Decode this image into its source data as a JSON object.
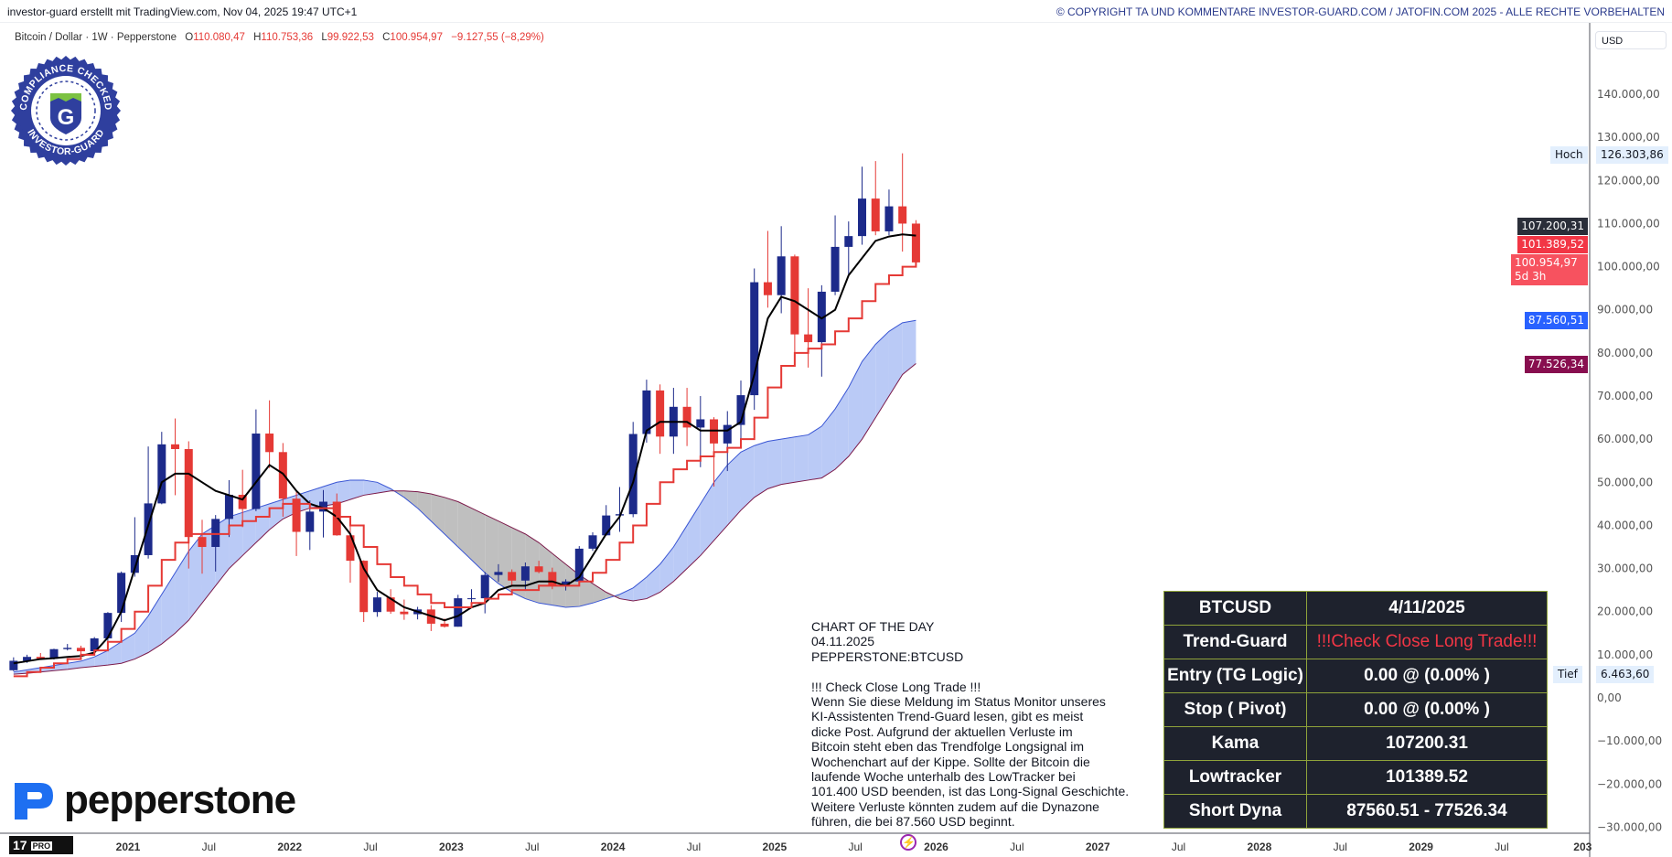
{
  "header": {
    "credit": "investor-guard erstellt mit TradingView.com, Nov 04, 2025 19:47 UTC+1",
    "copyright": "© COPYRIGHT TA UND KOMMENTARE INVESTOR-GUARD.COM / JATOFIN.COM 2025 - ALLE RECHTE VORBEHALTEN"
  },
  "legend": {
    "symbol": "Bitcoin / Dollar · 1W · Pepperstone",
    "o_label": "O",
    "o": "110.080,47",
    "h_label": "H",
    "h": "110.753,36",
    "l_label": "L",
    "l": "99.922,53",
    "c_label": "C",
    "c": "100.954,97",
    "change": "−9.127,55 (−8,29%)"
  },
  "badge": {
    "top_text": "COMPLIANCE CHECKED",
    "bottom_text": "INVESTOR-GUARD",
    "letter": "G"
  },
  "broker_logo": {
    "text": "pepperstone",
    "color": "#1e6ff1"
  },
  "tv_logo": {
    "mark": "17",
    "pro": "PRO"
  },
  "price_axis": {
    "currency": "USD",
    "high_label": "Hoch",
    "high_value": "126.303,86",
    "low_label": "Tief",
    "low_value": "6.463,60",
    "tags": [
      {
        "value": "107.200,31",
        "color": "#2a2e39"
      },
      {
        "value": "101.389,52",
        "color": "#f23645"
      },
      {
        "value": "100.954,97",
        "sub": "5d 3h",
        "color": "#f7525f"
      },
      {
        "value": "87.560,51",
        "color": "#2962ff"
      },
      {
        "value": "77.526,34",
        "color": "#880e4f"
      }
    ]
  },
  "note": {
    "text": "CHART OF THE DAY\n04.11.2025\nPEPPERSTONE:BTCUSD\n\n!!! Check Close Long Trade !!!\nWenn Sie diese Meldung im Status Monitor unseres\nKI-Assistenten Trend-Guard lesen, gibt es meist\ndicke Post. Aufgrund der aktuellen Verluste im\nBitcoin steht eben das Trendfolge Longsignal im\nWochenchart auf der Kippe. Sollte der Bitcoin die\nlaufende Woche unterhalb des LowTracker bei\n101.400 USD beenden, ist das Long-Signal Geschichte.\nWeitere Verluste könnten zudem auf die Dynazone\nführen, die bei 87.560 USD beginnt."
  },
  "table": {
    "rows": [
      [
        "BTCUSD",
        "4/11/2025"
      ],
      [
        "Trend-Guard",
        "!!!Check Close Long Trade!!!"
      ],
      [
        "Entry (TG Logic)",
        "0.00 @ (0.00% )"
      ],
      [
        "Stop ( Pivot)",
        "0.00 @ (0.00% )"
      ],
      [
        "Kama",
        "107200.31"
      ],
      [
        "Lowtracker",
        "101389.52"
      ],
      [
        "Short Dyna",
        "87560.51 - 77526.34"
      ]
    ],
    "alert_color": "#f23645"
  },
  "chart_data": {
    "type": "candlestick",
    "ylim": [
      -30000,
      140000
    ],
    "y_ticks": [
      "140.000,00",
      "130.000,00",
      "120.000,00",
      "110.000,00",
      "100.000,00",
      "90.000,00",
      "80.000,00",
      "70.000,00",
      "60.000,00",
      "50.000,00",
      "40.000,00",
      "30.000,00",
      "20.000,00",
      "10.000,00",
      "0,00",
      "−10.000,00",
      "−20.000,00",
      "−30.000,00"
    ],
    "y_tick_values": [
      140000,
      130000,
      120000,
      110000,
      100000,
      90000,
      80000,
      70000,
      60000,
      50000,
      40000,
      30000,
      20000,
      10000,
      0,
      -10000,
      -20000,
      -30000
    ],
    "x_ticks": [
      {
        "label": "2021",
        "t": 2021,
        "bold": true
      },
      {
        "label": "Jul",
        "t": 2021.5
      },
      {
        "label": "2022",
        "t": 2022,
        "bold": true
      },
      {
        "label": "Jul",
        "t": 2022.5
      },
      {
        "label": "2023",
        "t": 2023,
        "bold": true
      },
      {
        "label": "Jul",
        "t": 2023.5
      },
      {
        "label": "2024",
        "t": 2024,
        "bold": true
      },
      {
        "label": "Jul",
        "t": 2024.5
      },
      {
        "label": "2025",
        "t": 2025,
        "bold": true
      },
      {
        "label": "Jul",
        "t": 2025.5
      },
      {
        "label": "2026",
        "t": 2026,
        "bold": true
      },
      {
        "label": "Jul",
        "t": 2026.5
      },
      {
        "label": "2027",
        "t": 2027,
        "bold": true
      },
      {
        "label": "Jul",
        "t": 2027.5
      },
      {
        "label": "2028",
        "t": 2028,
        "bold": true
      },
      {
        "label": "Jul",
        "t": 2028.5
      },
      {
        "label": "2029",
        "t": 2029,
        "bold": true
      },
      {
        "label": "Jul",
        "t": 2029.5
      },
      {
        "label": "203",
        "t": 2030,
        "bold": true
      }
    ],
    "grid": false,
    "colors": {
      "up": "#1c2a8a",
      "down": "#e53935",
      "kama": "#000000",
      "lowtracker": "#e53935",
      "dyna_bull": "#b3c4f5",
      "dyna_bear": "#b8b8b8",
      "dyna_a": "#3a56d4",
      "dyna_b": "#7b1a4a"
    },
    "start_month": "2020-04",
    "ohlc_thousands": [
      [
        6.4,
        9.4,
        6.2,
        8.6
      ],
      [
        8.6,
        10.0,
        8.1,
        9.5
      ],
      [
        9.5,
        10.4,
        8.9,
        9.1
      ],
      [
        9.1,
        11.4,
        8.9,
        11.3
      ],
      [
        11.3,
        12.5,
        11.0,
        11.6
      ],
      [
        11.6,
        12.1,
        10.0,
        10.8
      ],
      [
        10.8,
        14.1,
        10.4,
        13.8
      ],
      [
        13.8,
        19.9,
        13.2,
        19.7
      ],
      [
        19.7,
        29.3,
        17.6,
        29.0
      ],
      [
        29.0,
        41.9,
        28.1,
        33.1
      ],
      [
        33.1,
        58.3,
        32.3,
        45.1
      ],
      [
        45.1,
        61.7,
        44.9,
        58.8
      ],
      [
        58.8,
        64.8,
        47.0,
        57.7
      ],
      [
        57.7,
        59.5,
        30.0,
        37.3
      ],
      [
        37.3,
        41.3,
        28.8,
        35.0
      ],
      [
        35.0,
        42.4,
        29.3,
        41.5
      ],
      [
        41.5,
        50.5,
        37.3,
        47.1
      ],
      [
        47.1,
        52.9,
        39.6,
        43.8
      ],
      [
        43.8,
        66.9,
        43.3,
        61.3
      ],
      [
        61.3,
        69.0,
        53.3,
        57.0
      ],
      [
        57.0,
        59.1,
        42.0,
        46.2
      ],
      [
        46.2,
        47.9,
        32.9,
        38.5
      ],
      [
        38.5,
        45.8,
        34.3,
        43.2
      ],
      [
        43.2,
        48.2,
        37.2,
        45.5
      ],
      [
        45.5,
        47.4,
        37.6,
        37.7
      ],
      [
        37.7,
        40.0,
        26.7,
        31.8
      ],
      [
        31.8,
        31.9,
        17.6,
        19.9
      ],
      [
        19.9,
        24.6,
        18.8,
        23.3
      ],
      [
        23.3,
        25.2,
        19.5,
        20.0
      ],
      [
        20.0,
        22.8,
        18.1,
        19.4
      ],
      [
        19.4,
        21.1,
        18.2,
        20.5
      ],
      [
        20.5,
        21.5,
        15.5,
        17.2
      ],
      [
        17.2,
        18.4,
        16.3,
        16.5
      ],
      [
        16.5,
        23.9,
        16.5,
        23.1
      ],
      [
        23.1,
        25.2,
        21.4,
        23.1
      ],
      [
        23.1,
        29.2,
        19.6,
        28.5
      ],
      [
        28.5,
        31.0,
        26.9,
        29.2
      ],
      [
        29.2,
        29.8,
        25.8,
        27.2
      ],
      [
        27.2,
        31.4,
        24.8,
        30.5
      ],
      [
        30.5,
        31.8,
        28.9,
        29.2
      ],
      [
        29.2,
        30.2,
        25.2,
        26.0
      ],
      [
        26.0,
        27.5,
        24.9,
        27.0
      ],
      [
        27.0,
        35.2,
        26.6,
        34.6
      ],
      [
        34.6,
        38.4,
        34.1,
        37.7
      ],
      [
        37.7,
        44.7,
        37.6,
        42.3
      ],
      [
        42.3,
        48.9,
        38.5,
        42.6
      ],
      [
        42.6,
        64.0,
        41.9,
        61.2
      ],
      [
        61.2,
        73.8,
        59.2,
        71.3
      ],
      [
        71.3,
        72.7,
        56.6,
        60.6
      ],
      [
        60.6,
        71.9,
        56.6,
        67.5
      ],
      [
        67.5,
        71.9,
        58.4,
        62.7
      ],
      [
        62.7,
        70.0,
        53.5,
        64.6
      ],
      [
        64.6,
        65.1,
        49.0,
        59.0
      ],
      [
        59.0,
        66.5,
        52.6,
        63.3
      ],
      [
        63.3,
        73.6,
        58.9,
        70.2
      ],
      [
        70.2,
        99.6,
        66.8,
        96.4
      ],
      [
        96.4,
        108.3,
        90.5,
        93.4
      ],
      [
        93.4,
        109.4,
        89.2,
        102.4
      ],
      [
        102.4,
        102.8,
        78.2,
        84.3
      ],
      [
        84.3,
        95.0,
        76.6,
        82.5
      ],
      [
        82.5,
        95.7,
        74.5,
        94.2
      ],
      [
        94.2,
        111.9,
        93.4,
        104.6
      ],
      [
        104.6,
        110.5,
        98.2,
        107.1
      ],
      [
        107.1,
        123.2,
        105.1,
        115.8
      ],
      [
        115.8,
        124.5,
        107.3,
        108.2
      ],
      [
        108.2,
        117.9,
        107.3,
        114.0
      ],
      [
        114.0,
        126.3,
        103.5,
        110.0
      ],
      [
        110.0,
        110.8,
        99.9,
        101.0
      ]
    ],
    "kama_thousands": [
      8,
      8.5,
      9,
      9.2,
      9.5,
      9.7,
      10.5,
      14,
      20,
      30,
      40,
      50,
      52,
      52,
      50,
      48,
      47,
      46,
      50,
      54,
      52,
      48,
      45,
      44,
      42,
      38,
      30,
      25,
      23,
      21,
      20,
      19,
      18,
      19,
      21,
      22,
      25,
      26,
      26,
      27,
      27,
      26,
      28,
      33,
      38,
      42,
      50,
      62,
      64,
      64,
      64,
      62,
      62,
      62,
      64,
      75,
      88,
      93,
      92,
      90,
      88,
      90,
      98,
      102,
      106,
      107,
      107.5,
      107.2
    ],
    "lowtracker_thousands": [
      5,
      6,
      7,
      8,
      9,
      10,
      11,
      13,
      16,
      20,
      26,
      32,
      36,
      38,
      38,
      38,
      40,
      41,
      42,
      44,
      45,
      45,
      44,
      44,
      42,
      40,
      35,
      31,
      28,
      26,
      24,
      22,
      21,
      21,
      22,
      23,
      24,
      25,
      25,
      26,
      26,
      26,
      27,
      29,
      32,
      36,
      40,
      45,
      50,
      53,
      55,
      56,
      57,
      58,
      60,
      65,
      72,
      77,
      80,
      81,
      82,
      85,
      88,
      92,
      96,
      98,
      100,
      101.39
    ],
    "dyna_a_thousands": [
      6,
      6.5,
      7,
      7.5,
      8,
      8.5,
      9.5,
      11,
      13,
      15,
      19,
      24,
      29,
      34,
      38,
      40,
      42,
      43,
      44,
      45,
      46,
      47,
      48,
      49,
      50,
      50.5,
      50.5,
      50,
      48.5,
      46.5,
      44,
      41,
      38,
      35,
      32,
      29,
      26.5,
      24.5,
      23,
      22,
      21.5,
      21,
      21.2,
      22,
      23,
      24,
      25.5,
      28,
      31,
      35,
      40,
      45,
      50,
      54,
      57,
      58.5,
      59.5,
      60,
      60.5,
      61,
      63,
      67,
      72,
      78,
      82,
      85,
      87,
      87.56
    ],
    "dyna_b_thousands": [
      5.5,
      5.7,
      6,
      6.3,
      6.6,
      7,
      7.3,
      7.6,
      8,
      9,
      10.5,
      12.5,
      15,
      18,
      22,
      26,
      30,
      33,
      36,
      39,
      41.5,
      43,
      44,
      44.5,
      45,
      46,
      47,
      47.5,
      48,
      48,
      47.8,
      47.3,
      46.5,
      45.5,
      44,
      42.5,
      41,
      39.5,
      38,
      36,
      33.5,
      31,
      28.5,
      26.5,
      24.5,
      23,
      22.5,
      23,
      24.5,
      27,
      30,
      33,
      36.5,
      40,
      43.5,
      46.5,
      48.5,
      49.5,
      50,
      50.5,
      51,
      53,
      56,
      60,
      65,
      70,
      75,
      77.53
    ]
  }
}
